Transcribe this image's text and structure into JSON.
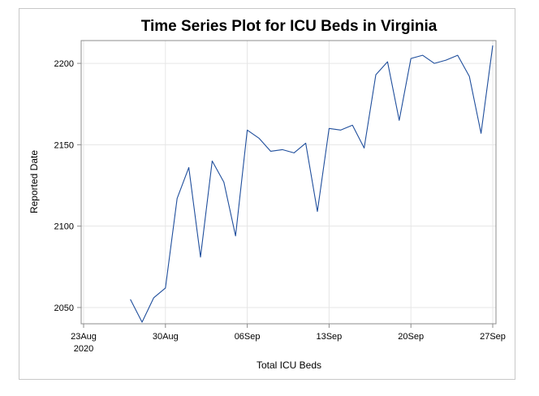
{
  "chart_data": {
    "type": "line",
    "title": "Time Series Plot for ICU Beds in Virginia",
    "xlabel": "Total ICU Beds",
    "ylabel": "Reported Date",
    "x_ticks": [
      {
        "date": "2020-08-23",
        "label": "23Aug",
        "sublabel": "2020"
      },
      {
        "date": "2020-08-30",
        "label": "30Aug"
      },
      {
        "date": "2020-09-06",
        "label": "06Sep"
      },
      {
        "date": "2020-09-13",
        "label": "13Sep"
      },
      {
        "date": "2020-09-20",
        "label": "20Sep"
      },
      {
        "date": "2020-09-27",
        "label": "27Sep"
      }
    ],
    "y_ticks": [
      2050,
      2100,
      2150,
      2200
    ],
    "xlim": [
      "2020-08-23",
      "2020-09-27"
    ],
    "ylim": [
      2040,
      2214
    ],
    "grid": true,
    "line_color": "#1f4e9c",
    "series": [
      {
        "x": [
          "2020-08-27",
          "2020-08-28",
          "2020-08-29",
          "2020-08-30",
          "2020-08-31",
          "2020-09-01",
          "2020-09-02",
          "2020-09-03",
          "2020-09-04",
          "2020-09-05",
          "2020-09-06",
          "2020-09-07",
          "2020-09-08",
          "2020-09-09",
          "2020-09-10",
          "2020-09-11",
          "2020-09-12",
          "2020-09-13",
          "2020-09-14",
          "2020-09-15",
          "2020-09-16",
          "2020-09-17",
          "2020-09-18",
          "2020-09-19",
          "2020-09-20",
          "2020-09-21",
          "2020-09-22",
          "2020-09-23",
          "2020-09-24",
          "2020-09-25",
          "2020-09-26",
          "2020-09-27"
        ],
        "values": [
          2055,
          2041,
          2056,
          2062,
          2117,
          2136,
          2081,
          2140,
          2127,
          2094,
          2159,
          2154,
          2146,
          2147,
          2145,
          2151,
          2109,
          2160,
          2159,
          2162,
          2148,
          2193,
          2201,
          2165,
          2203,
          2205,
          2200,
          2202,
          2205,
          2192,
          2157,
          2211
        ]
      }
    ]
  }
}
